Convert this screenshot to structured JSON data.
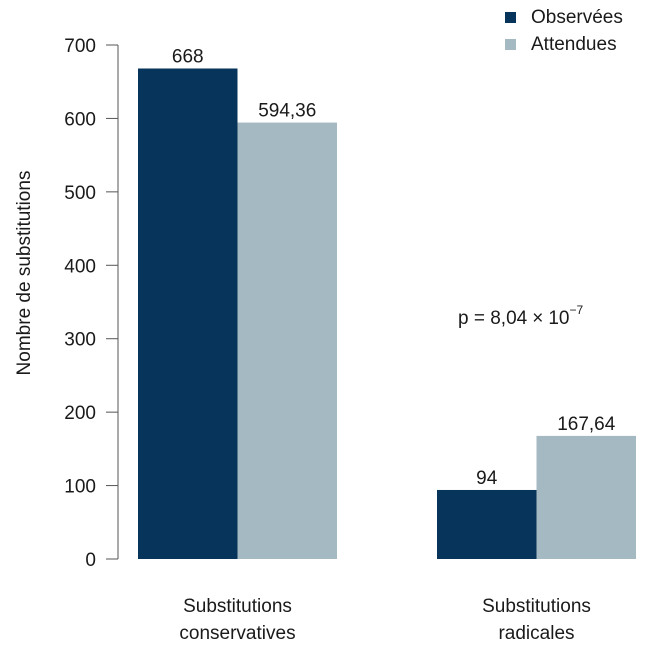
{
  "chart_data": {
    "type": "bar",
    "categories": [
      [
        "Substitutions",
        "conservatives"
      ],
      [
        "Substitutions",
        "radicales"
      ]
    ],
    "series": [
      {
        "name": "Observées",
        "values": [
          668,
          94
        ],
        "value_labels": [
          "668",
          "94"
        ],
        "color": "#06345a"
      },
      {
        "name": "Attendues",
        "values": [
          594.36,
          167.64
        ],
        "value_labels": [
          "594,36",
          "167,64"
        ],
        "color": "#a5b9c2"
      }
    ],
    "ylabel": "Nombre de substitutions",
    "xlabel": "",
    "ylim": [
      0,
      700
    ],
    "yticks": [
      0,
      100,
      200,
      300,
      400,
      500,
      600,
      700
    ],
    "grid": false,
    "legend_position": "top-right",
    "annotation": {
      "base": "p = 8,04",
      "times": "×",
      "power_base": "10",
      "exponent": "−7"
    }
  }
}
